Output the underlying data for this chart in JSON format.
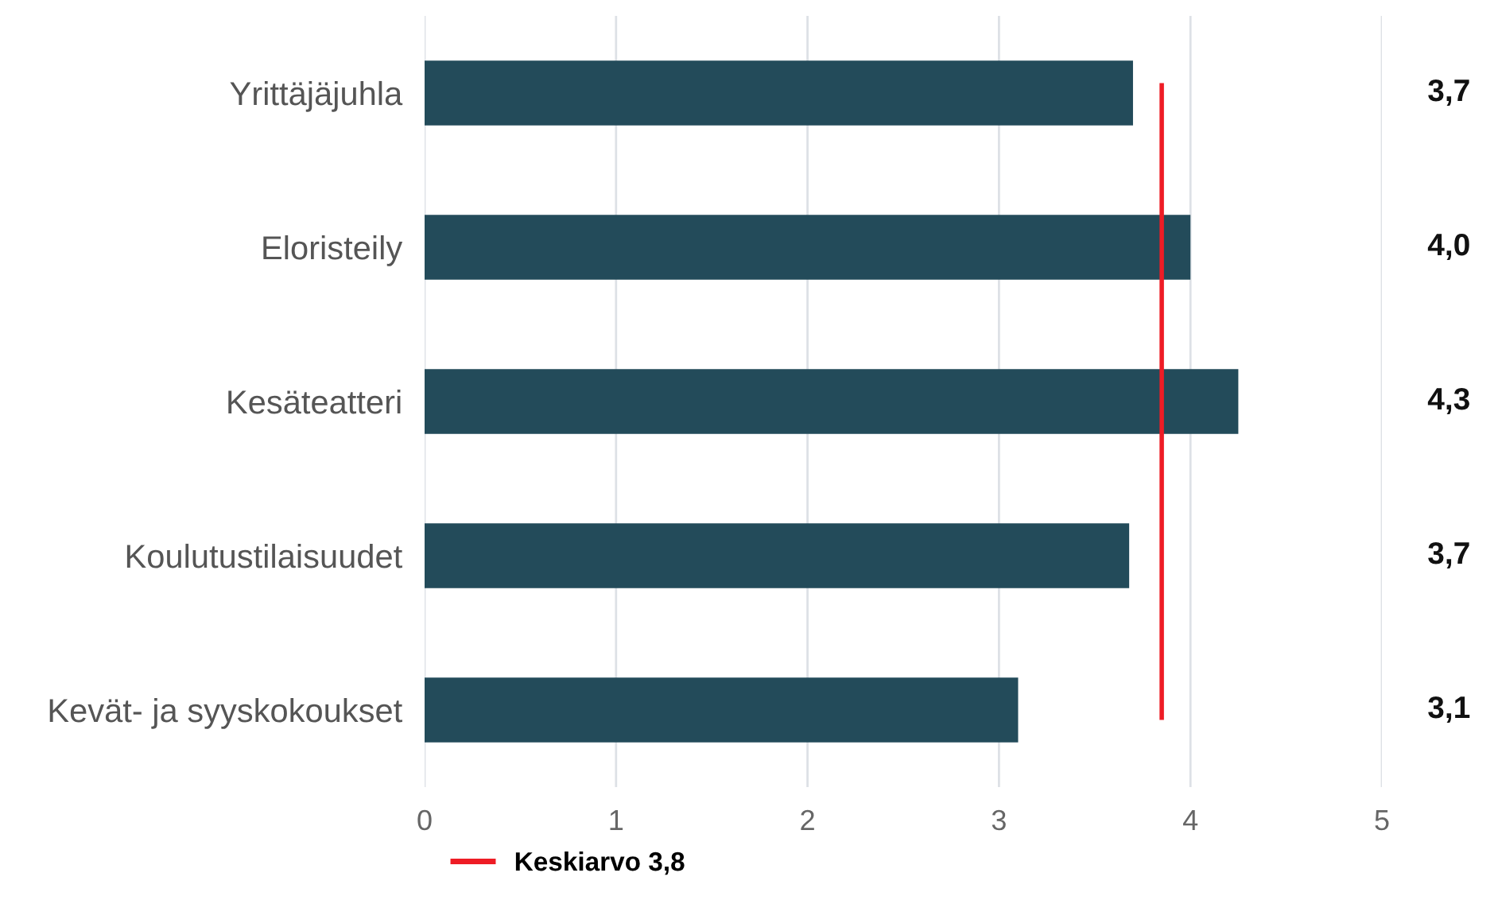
{
  "chart_data": {
    "type": "bar",
    "orientation": "horizontal",
    "categories": [
      "Yrittäjäjuhla",
      "Eloristeily",
      "Kesäteatteri",
      "Koulutustilaisuudet",
      "Kevät- ja syyskokoukset"
    ],
    "values": [
      3.7,
      4.0,
      4.25,
      3.68,
      3.1
    ],
    "value_labels": [
      "3,7",
      "4,0",
      "4,3",
      "3,7",
      "3,1"
    ],
    "color": "#234b5a",
    "xlim": [
      0,
      5
    ],
    "xticks": [
      0,
      1,
      2,
      3,
      4,
      5
    ],
    "grid": "x",
    "legend": "bottom left",
    "ref_lines": [
      {
        "axis": "x",
        "value": 3.85,
        "label": "Keskiarvo 3,8",
        "color": "#ee1c25"
      }
    ]
  }
}
